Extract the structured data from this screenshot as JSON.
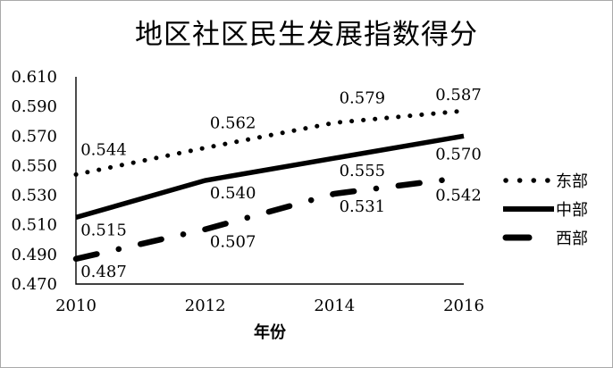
{
  "chart_data": {
    "type": "line",
    "title": "地区社区民生发展指数得分",
    "xlabel": "年份",
    "ylabel": "",
    "categories": [
      "2010",
      "2012",
      "2014",
      "2016"
    ],
    "ylim": [
      0.47,
      0.61
    ],
    "ytick_step": 0.02,
    "yticks": [
      "0.610",
      "0.590",
      "0.570",
      "0.550",
      "0.530",
      "0.510",
      "0.490",
      "0.470"
    ],
    "grid": false,
    "legend_position": "right",
    "line_color": "#000000",
    "series": [
      {
        "name": "东部",
        "values": [
          0.544,
          0.562,
          0.579,
          0.587
        ],
        "data_labels": [
          "0.544",
          "0.562",
          "0.579",
          "0.587"
        ],
        "line_style": "dotted",
        "label_position": "above"
      },
      {
        "name": "中部",
        "values": [
          0.515,
          0.54,
          0.555,
          0.57
        ],
        "data_labels": [
          "0.515",
          "0.540",
          "0.555",
          "0.570"
        ],
        "line_style": "solid",
        "label_position": "below"
      },
      {
        "name": "西部",
        "values": [
          0.487,
          0.507,
          0.531,
          0.542
        ],
        "data_labels": [
          "0.487",
          "0.507",
          "0.531",
          "0.542"
        ],
        "line_style": "dash-dot",
        "label_position": "below"
      }
    ]
  }
}
